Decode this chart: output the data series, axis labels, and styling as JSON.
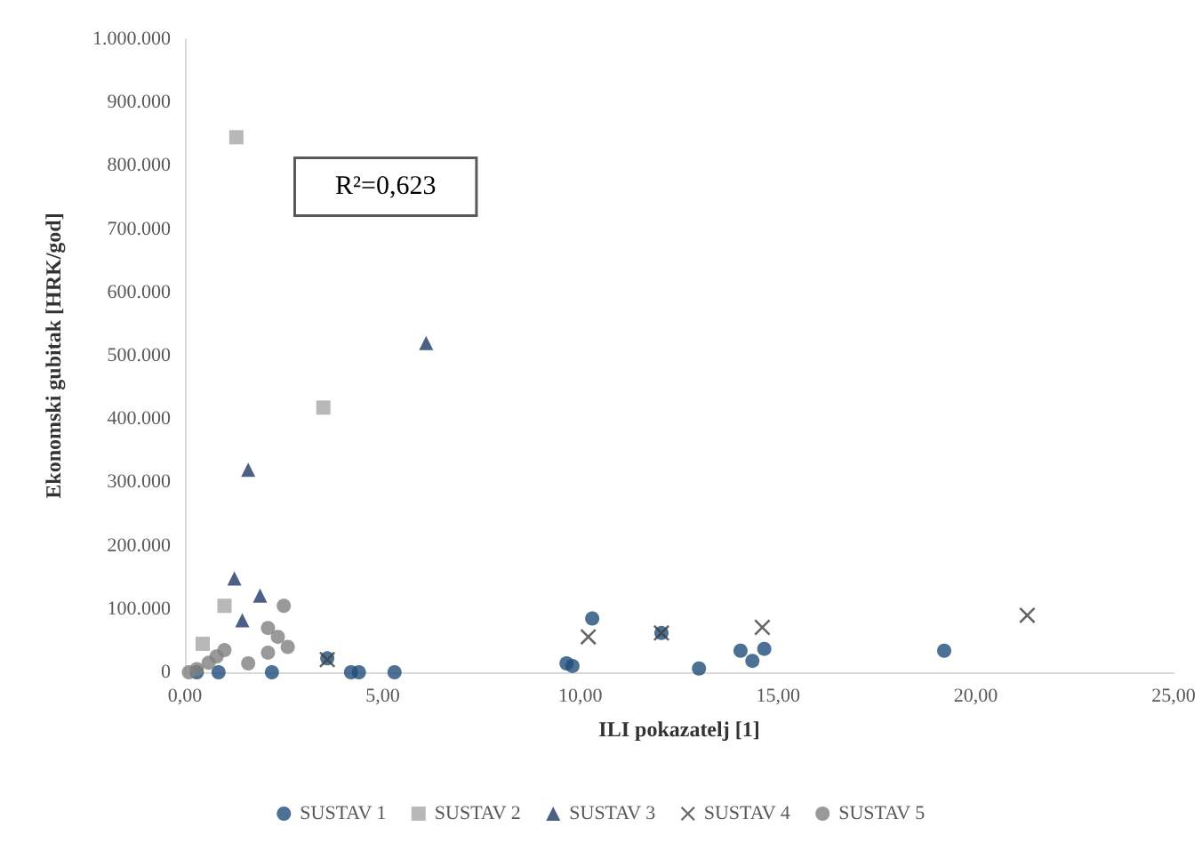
{
  "chart_data": {
    "type": "scatter",
    "xlabel": "ILI pokazatelj [1]",
    "ylabel": "Ekonomski gubitak [HRK/god]",
    "annotations": [
      "R²=0,623"
    ],
    "xlim": [
      0,
      25
    ],
    "xticks": [
      {
        "value": 0,
        "label": "0,00"
      },
      {
        "value": 5,
        "label": "5,00"
      },
      {
        "value": 10,
        "label": "10,00"
      },
      {
        "value": 15,
        "label": "15,00"
      },
      {
        "value": 20,
        "label": "20,00"
      },
      {
        "value": 25,
        "label": "25,00"
      }
    ],
    "ylim": [
      0,
      1000000
    ],
    "yticks": [
      0,
      {
        "value": 100000,
        "label": "100.000"
      },
      {
        "value": 200000,
        "label": "200.000"
      },
      {
        "value": 300000,
        "label": "300.000"
      },
      {
        "value": 400000,
        "label": "400.000"
      },
      {
        "value": 500000,
        "label": "500.000"
      },
      {
        "value": 600000,
        "label": "600.000"
      },
      {
        "value": 700000,
        "label": "700.000"
      },
      {
        "value": 800000,
        "label": "800.000"
      },
      {
        "value": 900000,
        "label": "900.000"
      },
      {
        "value": 1000000,
        "label": "1.000.000"
      }
    ],
    "grid": false,
    "legend": "bottom",
    "series": [
      {
        "name": "SUSTAV 1",
        "color": "#1f4e79",
        "marker": "circle",
        "x": [
          10.3,
          12.05,
          13.0,
          14.05,
          14.35,
          14.65,
          19.2,
          9.65,
          9.8,
          4.2,
          4.4,
          5.3,
          2.2,
          0.85,
          0.3,
          3.6
        ],
        "values": [
          85000,
          62000,
          6000,
          34000,
          18000,
          37000,
          34000,
          14000,
          10000,
          0,
          0,
          0,
          0,
          0,
          0,
          22000
        ]
      },
      {
        "name": "SUSTAV 2",
        "color": "#a6a6a6",
        "marker": "square",
        "x": [
          1.3,
          3.5,
          1.0,
          0.45
        ],
        "values": [
          845000,
          418000,
          105000,
          45000
        ]
      },
      {
        "name": "SUSTAV 3",
        "color": "#1f3864",
        "marker": "triangle",
        "x": [
          6.1,
          1.6,
          1.25,
          1.9,
          1.45
        ],
        "values": [
          520000,
          320000,
          148000,
          121000,
          82000
        ]
      },
      {
        "name": "SUSTAV 4",
        "color": "#404040",
        "marker": "cross",
        "x": [
          10.2,
          14.6,
          21.3,
          12.05,
          3.6
        ],
        "values": [
          56000,
          71000,
          90000,
          62000,
          20000
        ]
      },
      {
        "name": "SUSTAV 5",
        "color": "#7f7f7f",
        "marker": "circle",
        "x": [
          2.5,
          2.1,
          2.35,
          2.6,
          2.1,
          1.6,
          1.0,
          0.8,
          0.6,
          0.3,
          0.1
        ],
        "values": [
          105000,
          70000,
          56000,
          40000,
          31000,
          14000,
          35000,
          25000,
          15000,
          5000,
          0
        ]
      }
    ]
  }
}
